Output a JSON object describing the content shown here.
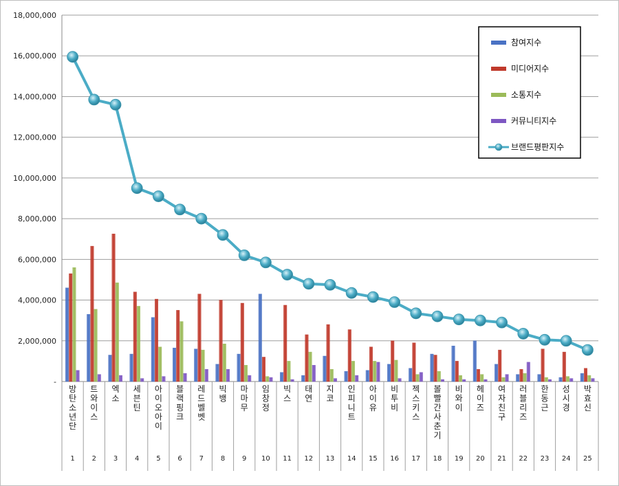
{
  "chart_data": {
    "type": "bar",
    "title": "",
    "xlabel": "",
    "ylabel": "",
    "ylim": [
      0,
      18000000
    ],
    "yticks": [
      "-",
      "2,000,000",
      "4,000,000",
      "6,000,000",
      "8,000,000",
      "10,000,000",
      "12,000,000",
      "14,000,000",
      "16,000,000",
      "18,000,000"
    ],
    "ytick_values": [
      0,
      2000000,
      4000000,
      6000000,
      8000000,
      10000000,
      12000000,
      14000000,
      16000000,
      18000000
    ],
    "grid": true,
    "legend_position": "top-right",
    "categories": [
      "방탄소년단",
      "트와이스",
      "엑소",
      "세븐틴",
      "아이오아이",
      "블랙핑크",
      "레드벨벳",
      "빅뱅",
      "마마무",
      "임창정",
      "빅스",
      "태연",
      "지코",
      "인피니트",
      "아이유",
      "비투비",
      "젝스키스",
      "볼빨간사춘기",
      "비와이",
      "헤이즈",
      "여자친구",
      "러블리즈",
      "한동근",
      "성시경",
      "박효신"
    ],
    "ranks": [
      "1",
      "2",
      "3",
      "4",
      "5",
      "6",
      "7",
      "8",
      "9",
      "10",
      "11",
      "12",
      "13",
      "14",
      "15",
      "16",
      "17",
      "18",
      "19",
      "20",
      "21",
      "22",
      "23",
      "24",
      "25"
    ],
    "series": [
      {
        "name": "참여지수",
        "kind": "bar",
        "color": "#4a72c4",
        "values": [
          4600000,
          3300000,
          1300000,
          1350000,
          3150000,
          1650000,
          1600000,
          850000,
          1350000,
          4300000,
          450000,
          300000,
          1250000,
          500000,
          550000,
          850000,
          650000,
          1350000,
          1750000,
          2000000,
          850000,
          350000,
          350000,
          200000,
          400000
        ]
      },
      {
        "name": "미디어지수",
        "kind": "bar",
        "color": "#c0392b",
        "values": [
          5300000,
          6650000,
          7250000,
          4400000,
          4050000,
          3500000,
          4300000,
          4000000,
          3850000,
          1200000,
          3750000,
          2300000,
          2800000,
          2550000,
          1700000,
          2000000,
          1900000,
          1300000,
          1000000,
          600000,
          1550000,
          600000,
          1600000,
          1450000,
          650000
        ]
      },
      {
        "name": "소통지수",
        "kind": "bar",
        "color": "#9bbb59",
        "values": [
          5600000,
          3550000,
          4850000,
          3700000,
          1700000,
          2950000,
          1550000,
          1850000,
          800000,
          250000,
          1000000,
          1450000,
          600000,
          1000000,
          1000000,
          1050000,
          350000,
          500000,
          300000,
          350000,
          200000,
          400000,
          200000,
          250000,
          300000
        ]
      },
      {
        "name": "커뮤니티지수",
        "kind": "bar",
        "color": "#7e57c2",
        "values": [
          550000,
          350000,
          300000,
          150000,
          250000,
          400000,
          600000,
          600000,
          300000,
          200000,
          100000,
          800000,
          150000,
          300000,
          950000,
          150000,
          450000,
          100000,
          100000,
          100000,
          350000,
          950000,
          100000,
          150000,
          150000
        ]
      },
      {
        "name": "브랜드평판지수",
        "kind": "line",
        "color": "#4bacc6",
        "values": [
          15950000,
          13850000,
          13600000,
          9500000,
          9100000,
          8450000,
          8000000,
          7200000,
          6200000,
          5850000,
          5250000,
          4800000,
          4750000,
          4350000,
          4150000,
          3900000,
          3350000,
          3200000,
          3050000,
          3000000,
          2900000,
          2350000,
          2050000,
          2000000,
          1550000
        ]
      }
    ]
  }
}
